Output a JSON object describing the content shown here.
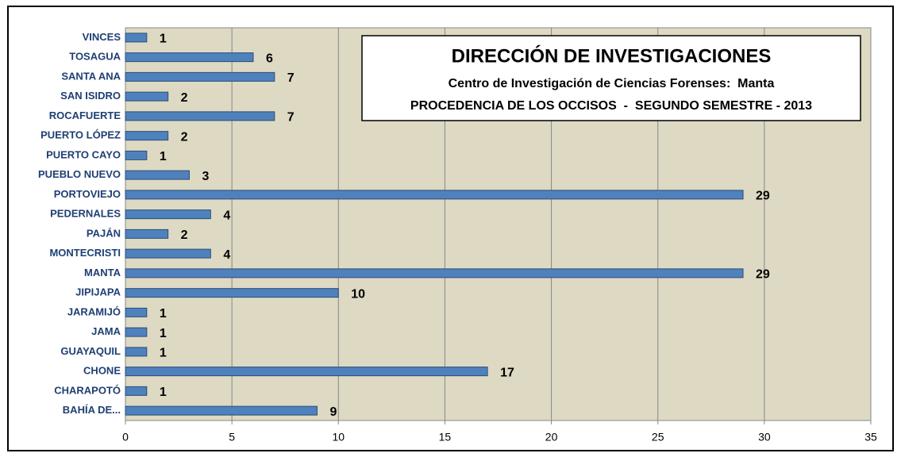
{
  "chart_data": {
    "type": "bar",
    "orientation": "horizontal",
    "title": "DIRECCIÓN DE INVESTIGACIONES",
    "subtitles": [
      "Centro de Investigación de Ciencias Forenses:  Manta",
      "PROCEDENCIA DE LOS OCCISOS  -  SEGUNDO SEMESTRE - 2013"
    ],
    "categories": [
      "VINCES",
      "TOSAGUA",
      "SANTA ANA",
      "SAN ISIDRO",
      "ROCAFUERTE",
      "PUERTO LÓPEZ",
      "PUERTO CAYO",
      "PUEBLO NUEVO",
      "PORTOVIEJO",
      "PEDERNALES",
      "PAJÁN",
      "MONTECRISTI",
      "MANTA",
      "JIPIJAPA",
      "JARAMIJÓ",
      "JAMA",
      "GUAYAQUIL",
      "CHONE",
      "CHARAPOTÓ",
      "BAHÍA DE..."
    ],
    "values": [
      1,
      6,
      7,
      2,
      7,
      2,
      1,
      3,
      29,
      4,
      2,
      4,
      29,
      10,
      1,
      1,
      1,
      17,
      1,
      9
    ],
    "color": "#4f81bd",
    "xlim": [
      0,
      35
    ],
    "xticks": [
      0,
      5,
      10,
      15,
      20,
      25,
      30,
      35
    ],
    "grid": true
  }
}
